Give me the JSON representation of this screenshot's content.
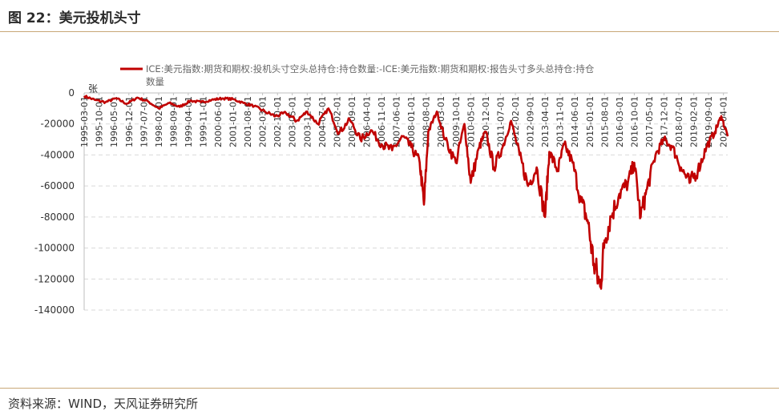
{
  "header": {
    "title": "图 22：美元投机头寸"
  },
  "footer": {
    "source": "资料来源：WIND，天风证券研究所"
  },
  "colors": {
    "series": "#c00000",
    "rule": "#c8a878",
    "grid": "#d9d9d9"
  },
  "chart_data": {
    "type": "line",
    "title": "",
    "xlabel": "",
    "ylabel": "张",
    "ylim": [
      -140000,
      0
    ],
    "yticks": [
      0,
      -20000,
      -40000,
      -60000,
      -80000,
      -100000,
      -120000,
      -140000
    ],
    "ytick_labels": [
      "0",
      "-20000",
      "-40000",
      "-60000",
      "-80000",
      "-100000",
      "-120000",
      "-140000"
    ],
    "x_range": [
      "1995-03-01",
      "2020-06-01"
    ],
    "xticks": [
      "1995-03-01",
      "1995-10-01",
      "1996-05-01",
      "1996-12-01",
      "1997-07-01",
      "1998-02-01",
      "1998-09-01",
      "1999-04-01",
      "1999-11-01",
      "2000-06-01",
      "2001-01-01",
      "2001-08-01",
      "2002-03-01",
      "2002-10-01",
      "2003-05-01",
      "2003-12-01",
      "2004-07-01",
      "2005-02-01",
      "2005-09-01",
      "2006-04-01",
      "2006-11-01",
      "2007-06-01",
      "2008-01-01",
      "2008-08-01",
      "2009-03-01",
      "2009-10-01",
      "2010-05-01",
      "2010-12-01",
      "2011-07-01",
      "2012-02-01",
      "2012-09-01",
      "2013-04-01",
      "2013-11-01",
      "2014-06-01",
      "2015-01-01",
      "2015-08-01",
      "2016-03-01",
      "2016-10-01",
      "2017-05-01",
      "2017-12-01",
      "2018-07-01",
      "2019-02-01",
      "2019-09-01",
      "2020-04-01"
    ],
    "grid": "horizontal dashed",
    "legend_position": "top",
    "series": [
      {
        "name": "ICE:美元指数:期货和期权:投机头寸空头总持仓:持仓数量:-ICE:美元指数:期货和期权:报告头寸多头总持仓:持仓数量",
        "color": "#c00000",
        "points": [
          [
            "1995-03-01",
            -2000
          ],
          [
            "1995-08-01",
            -4500
          ],
          [
            "1996-01-01",
            -6000
          ],
          [
            "1996-06-01",
            -3500
          ],
          [
            "1996-11-01",
            -7000
          ],
          [
            "1997-04-01",
            -3000
          ],
          [
            "1997-09-01",
            -5500
          ],
          [
            "1998-02-01",
            -10000
          ],
          [
            "1998-07-01",
            -6500
          ],
          [
            "1998-12-01",
            -9000
          ],
          [
            "1999-05-01",
            -5000
          ],
          [
            "1999-10-01",
            -6000
          ],
          [
            "2000-03-01",
            -4500
          ],
          [
            "2000-08-01",
            -3500
          ],
          [
            "2001-01-01",
            -4000
          ],
          [
            "2001-06-01",
            -6500
          ],
          [
            "2001-11-01",
            -8500
          ],
          [
            "2002-04-01",
            -12000
          ],
          [
            "2002-09-01",
            -15000
          ],
          [
            "2003-02-01",
            -13000
          ],
          [
            "2003-07-01",
            -18000
          ],
          [
            "2003-12-01",
            -12000
          ],
          [
            "2004-05-01",
            -20000
          ],
          [
            "2004-10-01",
            -10000
          ],
          [
            "2005-03-01",
            -26000
          ],
          [
            "2005-08-01",
            -17000
          ],
          [
            "2006-01-01",
            -30000
          ],
          [
            "2006-06-01",
            -24000
          ],
          [
            "2006-11-01",
            -33000
          ],
          [
            "2007-04-01",
            -37000
          ],
          [
            "2007-09-01",
            -28000
          ],
          [
            "2008-01-01",
            -35000
          ],
          [
            "2008-05-01",
            -45000
          ],
          [
            "2008-07-01",
            -72000
          ],
          [
            "2008-09-01",
            -25000
          ],
          [
            "2009-01-01",
            -12000
          ],
          [
            "2009-05-01",
            -30000
          ],
          [
            "2009-10-01",
            -45000
          ],
          [
            "2010-02-01",
            -20000
          ],
          [
            "2010-05-01",
            -58000
          ],
          [
            "2010-09-01",
            -35000
          ],
          [
            "2010-12-01",
            -25000
          ],
          [
            "2011-04-01",
            -48000
          ],
          [
            "2011-08-01",
            -35000
          ],
          [
            "2011-12-01",
            -18000
          ],
          [
            "2012-04-01",
            -40000
          ],
          [
            "2012-08-01",
            -60000
          ],
          [
            "2012-12-01",
            -48000
          ],
          [
            "2013-04-01",
            -80000
          ],
          [
            "2013-06-01",
            -38000
          ],
          [
            "2013-10-01",
            -50000
          ],
          [
            "2014-01-01",
            -33000
          ],
          [
            "2014-05-01",
            -45000
          ],
          [
            "2014-09-01",
            -70000
          ],
          [
            "2014-12-01",
            -82000
          ],
          [
            "2015-03-01",
            -110000
          ],
          [
            "2015-06-01",
            -125000
          ],
          [
            "2015-08-01",
            -95000
          ],
          [
            "2015-11-01",
            -80000
          ],
          [
            "2016-03-01",
            -65000
          ],
          [
            "2016-07-01",
            -58000
          ],
          [
            "2016-10-01",
            -45000
          ],
          [
            "2017-01-01",
            -80000
          ],
          [
            "2017-04-01",
            -62000
          ],
          [
            "2017-08-01",
            -40000
          ],
          [
            "2017-12-01",
            -30000
          ],
          [
            "2018-04-01",
            -35000
          ],
          [
            "2018-08-01",
            -48000
          ],
          [
            "2018-12-01",
            -58000
          ],
          [
            "2019-04-01",
            -50000
          ],
          [
            "2019-08-01",
            -35000
          ],
          [
            "2019-12-01",
            -25000
          ],
          [
            "2020-03-01",
            -15000
          ],
          [
            "2020-06-01",
            -28000
          ]
        ]
      }
    ]
  }
}
